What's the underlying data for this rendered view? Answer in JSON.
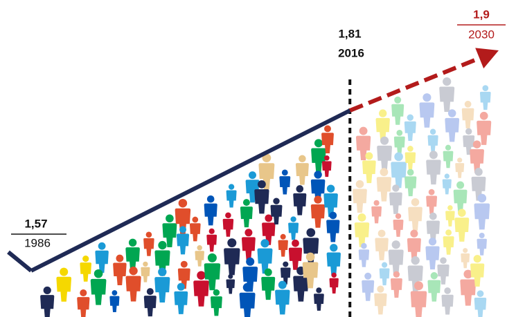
{
  "chart_data": {
    "type": "line",
    "x": [
      1986,
      2016,
      2030
    ],
    "values": [
      1.57,
      1.81,
      1.9
    ],
    "value_labels": [
      "1,57",
      "1,81",
      "1,9"
    ],
    "color": "#1f2a55",
    "forecast_color": "#b31b1b"
  }
}
